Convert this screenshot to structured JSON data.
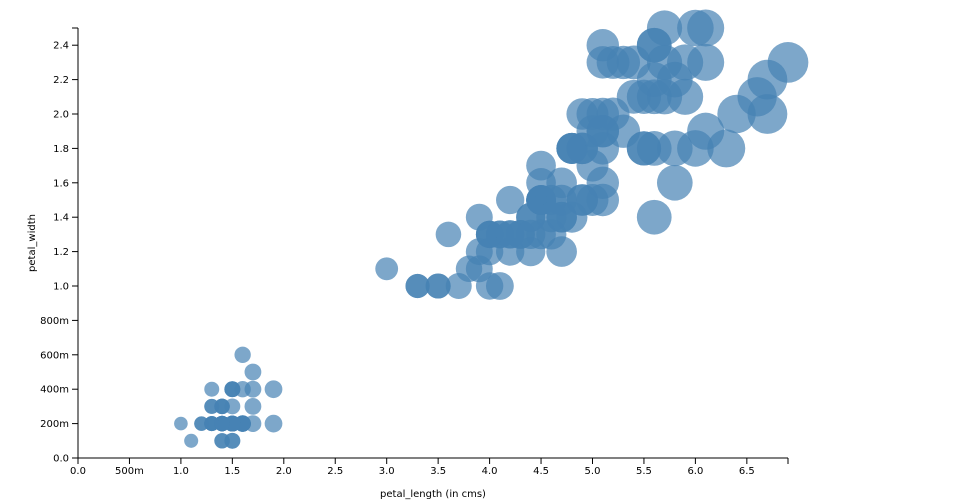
{
  "chart_data": {
    "type": "scatter",
    "xlabel": "petal_length (in cms)",
    "ylabel": "petal_width",
    "xlim": [
      0,
      6.9
    ],
    "ylim": [
      0,
      2.5
    ],
    "x_ticks": [
      {
        "value": 0,
        "label": "0.0"
      },
      {
        "value": 0.5,
        "label": "500m"
      },
      {
        "value": 1.0,
        "label": "1.0"
      },
      {
        "value": 1.5,
        "label": "1.5"
      },
      {
        "value": 2.0,
        "label": "2.0"
      },
      {
        "value": 2.5,
        "label": "2.5"
      },
      {
        "value": 3.0,
        "label": "3.0"
      },
      {
        "value": 3.5,
        "label": "3.5"
      },
      {
        "value": 4.0,
        "label": "4.0"
      },
      {
        "value": 4.5,
        "label": "4.5"
      },
      {
        "value": 5.0,
        "label": "5.0"
      },
      {
        "value": 5.5,
        "label": "5.5"
      },
      {
        "value": 6.0,
        "label": "6.0"
      },
      {
        "value": 6.5,
        "label": "6.5"
      }
    ],
    "y_ticks": [
      {
        "value": 0,
        "label": "0.0"
      },
      {
        "value": 0.2,
        "label": "200m"
      },
      {
        "value": 0.4,
        "label": "400m"
      },
      {
        "value": 0.6,
        "label": "600m"
      },
      {
        "value": 0.8,
        "label": "800m"
      },
      {
        "value": 1.0,
        "label": "1.0"
      },
      {
        "value": 1.2,
        "label": "1.2"
      },
      {
        "value": 1.4,
        "label": "1.4"
      },
      {
        "value": 1.6,
        "label": "1.6"
      },
      {
        "value": 1.8,
        "label": "1.8"
      },
      {
        "value": 2.0,
        "label": "2.0"
      },
      {
        "value": 2.2,
        "label": "2.2"
      },
      {
        "value": 2.4,
        "label": "2.4"
      }
    ],
    "grid": false,
    "point_color": "#4682b4",
    "size_encoding": "bubble area grows with petal_length",
    "points": [
      {
        "x": 1.4,
        "y": 0.2
      },
      {
        "x": 1.4,
        "y": 0.2
      },
      {
        "x": 1.3,
        "y": 0.2
      },
      {
        "x": 1.5,
        "y": 0.2
      },
      {
        "x": 1.4,
        "y": 0.2
      },
      {
        "x": 1.7,
        "y": 0.4
      },
      {
        "x": 1.4,
        "y": 0.3
      },
      {
        "x": 1.5,
        "y": 0.2
      },
      {
        "x": 1.4,
        "y": 0.2
      },
      {
        "x": 1.5,
        "y": 0.1
      },
      {
        "x": 1.5,
        "y": 0.2
      },
      {
        "x": 1.6,
        "y": 0.2
      },
      {
        "x": 1.4,
        "y": 0.1
      },
      {
        "x": 1.1,
        "y": 0.1
      },
      {
        "x": 1.2,
        "y": 0.2
      },
      {
        "x": 1.5,
        "y": 0.4
      },
      {
        "x": 1.3,
        "y": 0.4
      },
      {
        "x": 1.4,
        "y": 0.3
      },
      {
        "x": 1.7,
        "y": 0.3
      },
      {
        "x": 1.5,
        "y": 0.3
      },
      {
        "x": 1.7,
        "y": 0.2
      },
      {
        "x": 1.5,
        "y": 0.4
      },
      {
        "x": 1.0,
        "y": 0.2
      },
      {
        "x": 1.7,
        "y": 0.5
      },
      {
        "x": 1.9,
        "y": 0.2
      },
      {
        "x": 1.6,
        "y": 0.2
      },
      {
        "x": 1.6,
        "y": 0.4
      },
      {
        "x": 1.5,
        "y": 0.2
      },
      {
        "x": 1.4,
        "y": 0.2
      },
      {
        "x": 1.6,
        "y": 0.2
      },
      {
        "x": 1.6,
        "y": 0.2
      },
      {
        "x": 1.5,
        "y": 0.4
      },
      {
        "x": 1.5,
        "y": 0.1
      },
      {
        "x": 1.4,
        "y": 0.2
      },
      {
        "x": 1.5,
        "y": 0.2
      },
      {
        "x": 1.2,
        "y": 0.2
      },
      {
        "x": 1.3,
        "y": 0.2
      },
      {
        "x": 1.4,
        "y": 0.1
      },
      {
        "x": 1.3,
        "y": 0.2
      },
      {
        "x": 1.5,
        "y": 0.2
      },
      {
        "x": 1.3,
        "y": 0.3
      },
      {
        "x": 1.3,
        "y": 0.3
      },
      {
        "x": 1.3,
        "y": 0.2
      },
      {
        "x": 1.6,
        "y": 0.6
      },
      {
        "x": 1.9,
        "y": 0.4
      },
      {
        "x": 1.4,
        "y": 0.3
      },
      {
        "x": 1.6,
        "y": 0.2
      },
      {
        "x": 1.4,
        "y": 0.2
      },
      {
        "x": 1.5,
        "y": 0.2
      },
      {
        "x": 1.4,
        "y": 0.2
      },
      {
        "x": 4.7,
        "y": 1.4
      },
      {
        "x": 4.5,
        "y": 1.5
      },
      {
        "x": 4.9,
        "y": 1.5
      },
      {
        "x": 4.0,
        "y": 1.3
      },
      {
        "x": 4.6,
        "y": 1.5
      },
      {
        "x": 4.5,
        "y": 1.3
      },
      {
        "x": 4.7,
        "y": 1.6
      },
      {
        "x": 3.3,
        "y": 1.0
      },
      {
        "x": 4.6,
        "y": 1.3
      },
      {
        "x": 3.9,
        "y": 1.4
      },
      {
        "x": 3.5,
        "y": 1.0
      },
      {
        "x": 4.2,
        "y": 1.5
      },
      {
        "x": 4.0,
        "y": 1.0
      },
      {
        "x": 4.7,
        "y": 1.4
      },
      {
        "x": 3.6,
        "y": 1.3
      },
      {
        "x": 4.4,
        "y": 1.4
      },
      {
        "x": 4.5,
        "y": 1.5
      },
      {
        "x": 4.1,
        "y": 1.0
      },
      {
        "x": 4.5,
        "y": 1.5
      },
      {
        "x": 3.9,
        "y": 1.1
      },
      {
        "x": 4.8,
        "y": 1.8
      },
      {
        "x": 4.0,
        "y": 1.3
      },
      {
        "x": 4.9,
        "y": 1.5
      },
      {
        "x": 4.7,
        "y": 1.2
      },
      {
        "x": 4.3,
        "y": 1.3
      },
      {
        "x": 4.4,
        "y": 1.4
      },
      {
        "x": 4.8,
        "y": 1.4
      },
      {
        "x": 5.0,
        "y": 1.7
      },
      {
        "x": 4.5,
        "y": 1.5
      },
      {
        "x": 3.5,
        "y": 1.0
      },
      {
        "x": 3.8,
        "y": 1.1
      },
      {
        "x": 3.7,
        "y": 1.0
      },
      {
        "x": 3.9,
        "y": 1.2
      },
      {
        "x": 5.1,
        "y": 1.6
      },
      {
        "x": 4.5,
        "y": 1.5
      },
      {
        "x": 4.5,
        "y": 1.6
      },
      {
        "x": 4.7,
        "y": 1.5
      },
      {
        "x": 4.4,
        "y": 1.3
      },
      {
        "x": 4.1,
        "y": 1.3
      },
      {
        "x": 4.0,
        "y": 1.3
      },
      {
        "x": 4.4,
        "y": 1.2
      },
      {
        "x": 4.6,
        "y": 1.4
      },
      {
        "x": 4.0,
        "y": 1.2
      },
      {
        "x": 3.3,
        "y": 1.0
      },
      {
        "x": 4.2,
        "y": 1.3
      },
      {
        "x": 4.2,
        "y": 1.2
      },
      {
        "x": 4.2,
        "y": 1.3
      },
      {
        "x": 4.3,
        "y": 1.3
      },
      {
        "x": 3.0,
        "y": 1.1
      },
      {
        "x": 4.1,
        "y": 1.3
      },
      {
        "x": 6.0,
        "y": 2.5
      },
      {
        "x": 5.1,
        "y": 1.9
      },
      {
        "x": 5.9,
        "y": 2.1
      },
      {
        "x": 5.6,
        "y": 1.8
      },
      {
        "x": 5.8,
        "y": 2.2
      },
      {
        "x": 6.6,
        "y": 2.1
      },
      {
        "x": 4.5,
        "y": 1.7
      },
      {
        "x": 6.3,
        "y": 1.8
      },
      {
        "x": 5.8,
        "y": 1.8
      },
      {
        "x": 6.1,
        "y": 2.5
      },
      {
        "x": 5.1,
        "y": 2.0
      },
      {
        "x": 5.3,
        "y": 1.9
      },
      {
        "x": 5.5,
        "y": 2.1
      },
      {
        "x": 5.0,
        "y": 2.0
      },
      {
        "x": 5.1,
        "y": 2.4
      },
      {
        "x": 5.3,
        "y": 2.3
      },
      {
        "x": 5.5,
        "y": 1.8
      },
      {
        "x": 6.7,
        "y": 2.2
      },
      {
        "x": 6.9,
        "y": 2.3
      },
      {
        "x": 5.0,
        "y": 1.5
      },
      {
        "x": 5.7,
        "y": 2.3
      },
      {
        "x": 4.9,
        "y": 2.0
      },
      {
        "x": 6.7,
        "y": 2.0
      },
      {
        "x": 4.9,
        "y": 1.8
      },
      {
        "x": 5.7,
        "y": 2.1
      },
      {
        "x": 6.0,
        "y": 1.8
      },
      {
        "x": 4.8,
        "y": 1.8
      },
      {
        "x": 4.9,
        "y": 1.8
      },
      {
        "x": 5.6,
        "y": 2.1
      },
      {
        "x": 5.8,
        "y": 1.6
      },
      {
        "x": 6.1,
        "y": 1.9
      },
      {
        "x": 6.4,
        "y": 2.0
      },
      {
        "x": 5.6,
        "y": 2.2
      },
      {
        "x": 5.1,
        "y": 1.5
      },
      {
        "x": 5.6,
        "y": 1.4
      },
      {
        "x": 6.1,
        "y": 2.3
      },
      {
        "x": 5.6,
        "y": 2.4
      },
      {
        "x": 5.5,
        "y": 1.8
      },
      {
        "x": 4.8,
        "y": 1.8
      },
      {
        "x": 5.4,
        "y": 2.1
      },
      {
        "x": 5.6,
        "y": 2.4
      },
      {
        "x": 5.1,
        "y": 2.3
      },
      {
        "x": 5.1,
        "y": 1.9
      },
      {
        "x": 5.9,
        "y": 2.3
      },
      {
        "x": 5.7,
        "y": 2.5
      },
      {
        "x": 5.2,
        "y": 2.3
      },
      {
        "x": 5.0,
        "y": 1.9
      },
      {
        "x": 5.2,
        "y": 2.0
      },
      {
        "x": 5.4,
        "y": 2.3
      },
      {
        "x": 5.1,
        "y": 1.8
      }
    ]
  }
}
